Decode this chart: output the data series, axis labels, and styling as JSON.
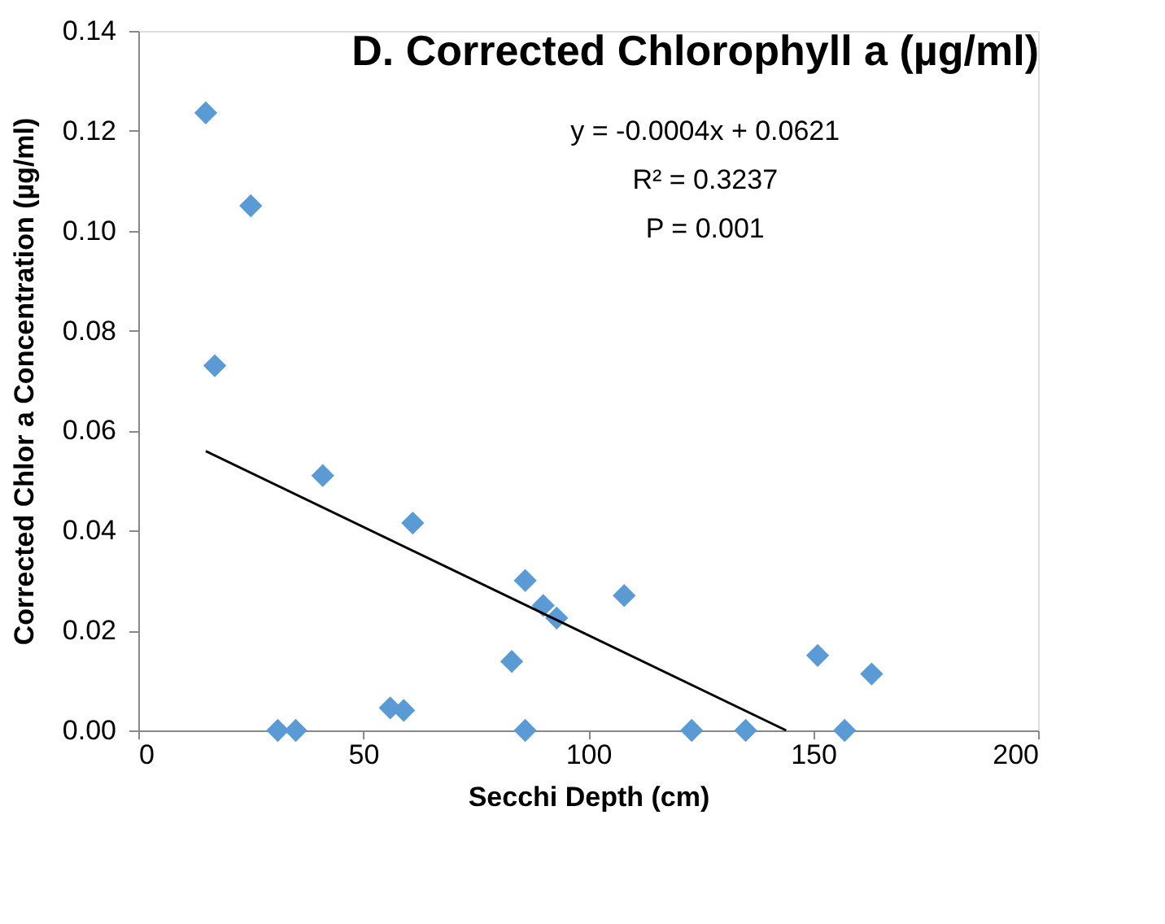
{
  "chart_data": {
    "type": "scatter",
    "title": "D. Corrected Chlorophyll a (µg/ml)",
    "xlabel": "Secchi Depth (cm)",
    "ylabel": "Corrected Chlor a Concentration (µg/ml)",
    "annotations": [
      "y = -0.0004x + 0.0621",
      "R² = 0.3237",
      "P = 0.001"
    ],
    "xlim": [
      0,
      200
    ],
    "xticks": [
      0,
      50,
      100,
      150,
      200
    ],
    "ylim": [
      0,
      0.14
    ],
    "yticks": [
      {
        "value": 0,
        "label": "0.00"
      },
      {
        "value": 0.02,
        "label": "0.02"
      },
      {
        "value": 0.04,
        "label": "0.04"
      },
      {
        "value": 0.06,
        "label": "0.06"
      },
      {
        "value": 0.08,
        "label": "0.08"
      },
      {
        "value": 0.1,
        "label": "0.10"
      },
      {
        "value": 0.12,
        "label": "0.12"
      },
      {
        "value": 0.14,
        "label": "0.14"
      }
    ],
    "grid": false,
    "marker": "diamond",
    "series": [
      {
        "color": "#5b9bd5",
        "x": [
          15,
          25,
          17,
          31,
          35,
          41,
          56,
          59,
          61,
          83,
          86,
          86,
          90,
          93,
          108,
          123,
          135,
          151,
          157,
          163
        ],
        "values": [
          0.1236,
          0.105,
          0.073,
          0,
          0,
          0.051,
          0.0045,
          0.004,
          0.0415,
          0.0138,
          0.03,
          0,
          0.025,
          0.0225,
          0.027,
          0,
          0,
          0.015,
          0,
          0.0113
        ]
      },
      {
        "type": "line",
        "color": "#000000",
        "x": [
          15,
          144
        ],
        "values": [
          0.0559,
          0
        ],
        "line_style": "solid",
        "marker": "none"
      }
    ]
  }
}
